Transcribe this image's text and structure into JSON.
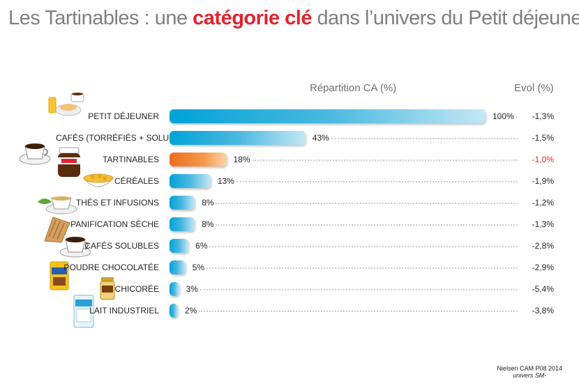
{
  "title": {
    "part1": "Les Tartinables : une ",
    "highlight": "catégorie clé",
    "part2": " dans l’univers du Petit déjeuner"
  },
  "headers": {
    "share": "Répartition CA (%)",
    "evol": "Evol (%)"
  },
  "colors": {
    "accent_red": "#e3232d",
    "bar_blue": "#00a3d6",
    "bar_orange": "#ee6d1f"
  },
  "chart_data": {
    "type": "bar",
    "orientation": "horizontal",
    "categories": [
      "PETIT DÉJEUNER",
      "CAFÉS (TORRÉFIÉS + SOLUBLES)",
      "TARTINABLES",
      "CÉRÉALES",
      "THÉS ET INFUSIONS",
      "PANIFICATION SÈCHE",
      "CAFÉS SOLUBLES",
      "POUDRE CHOCOLATÉE",
      "CHICORÉE",
      "LAIT INDUSTRIEL"
    ],
    "values": [
      100,
      43,
      18,
      13,
      8,
      8,
      6,
      5,
      3,
      2
    ],
    "value_labels": [
      "100%",
      "43%",
      "18%",
      "13%",
      "8%",
      "8%",
      "6%",
      "5%",
      "3%",
      "2%"
    ],
    "evol_labels": [
      "-1,3%",
      "-1,5%",
      "-1,0%",
      "-1,9%",
      "-1,2%",
      "-1,3%",
      "-2,8%",
      "-2,9%",
      "-5,4%",
      "-3,8%"
    ],
    "highlight_index": 2,
    "xlim": [
      0,
      100
    ]
  },
  "source": {
    "line1": "Nielsen CAM P08 2014",
    "line2": "univers SM-"
  }
}
